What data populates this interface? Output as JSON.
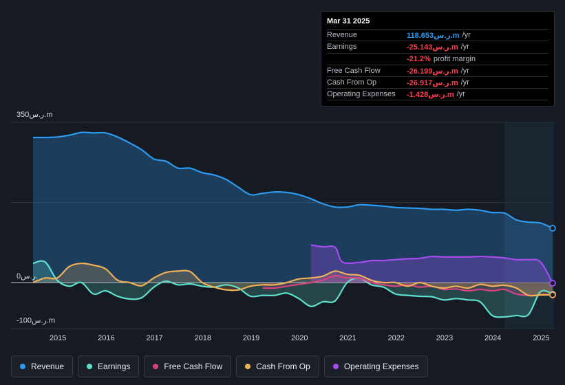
{
  "tooltip": {
    "date": "Mar 31 2025",
    "rows": [
      {
        "label": "Revenue",
        "value": "118.653ر.س.m",
        "unit": "/yr",
        "tone": "pos"
      },
      {
        "label": "Earnings",
        "value": "-25.143ر.س.m",
        "unit": "/yr",
        "tone": "neg"
      },
      {
        "label": "",
        "value": "-21.2%",
        "unit": "profit margin",
        "tone": "neg"
      },
      {
        "label": "Free Cash Flow",
        "value": "-26.199ر.س.m",
        "unit": "/yr",
        "tone": "neg"
      },
      {
        "label": "Cash From Op",
        "value": "-26.917ر.س.m",
        "unit": "/yr",
        "tone": "neg"
      },
      {
        "label": "Operating Expenses",
        "value": "-1.428ر.س.m",
        "unit": "/yr",
        "tone": "neg"
      }
    ]
  },
  "legend": [
    {
      "label": "Revenue",
      "color": "#2e9bf0"
    },
    {
      "label": "Earnings",
      "color": "#5fe0cf"
    },
    {
      "label": "Free Cash Flow",
      "color": "#d8457e"
    },
    {
      "label": "Cash From Op",
      "color": "#f0b05a"
    },
    {
      "label": "Operating Expenses",
      "color": "#a64cf0"
    }
  ],
  "chart_data": {
    "type": "line",
    "title": "",
    "xlabel": "",
    "ylabel": "",
    "ylim": [
      -100,
      350
    ],
    "xlim": [
      2014.5,
      2025.25
    ],
    "y_tick_labels": [
      {
        "value": 350,
        "label": "350ر.س.m"
      },
      {
        "value": 0,
        "label": "0ر.س."
      },
      {
        "value": -100,
        "label": "-100ر.س.m"
      }
    ],
    "x_ticks": [
      "2015",
      "2016",
      "2017",
      "2018",
      "2019",
      "2020",
      "2021",
      "2022",
      "2023",
      "2024",
      "2025"
    ],
    "forecast_start": 2024.25,
    "series": [
      {
        "name": "Revenue",
        "color": "#2e9bf0",
        "x": [
          2014.5,
          2014.75,
          2015.0,
          2015.25,
          2015.5,
          2015.75,
          2016.0,
          2016.25,
          2016.5,
          2016.75,
          2017.0,
          2017.25,
          2017.5,
          2017.75,
          2018.0,
          2018.25,
          2018.5,
          2018.75,
          2019.0,
          2019.25,
          2019.5,
          2019.75,
          2020.0,
          2020.25,
          2020.5,
          2020.75,
          2021.0,
          2021.25,
          2021.5,
          2021.75,
          2022.0,
          2022.25,
          2022.5,
          2022.75,
          2023.0,
          2023.25,
          2023.5,
          2023.75,
          2024.0,
          2024.25,
          2024.5,
          2024.75,
          2025.0,
          2025.25
        ],
        "y": [
          317,
          317,
          318,
          322,
          328,
          327,
          327,
          318,
          305,
          290,
          270,
          265,
          250,
          250,
          240,
          235,
          225,
          208,
          192,
          195,
          198,
          197,
          192,
          183,
          172,
          165,
          165,
          170,
          169,
          167,
          164,
          163,
          162,
          160,
          160,
          158,
          160,
          158,
          153,
          152,
          137,
          132,
          130,
          118.653
        ]
      },
      {
        "name": "Earnings",
        "color": "#5fe0cf",
        "x": [
          2014.5,
          2014.75,
          2015.0,
          2015.25,
          2015.5,
          2015.75,
          2016.0,
          2016.25,
          2016.5,
          2016.75,
          2017.0,
          2017.25,
          2017.5,
          2017.75,
          2018.0,
          2018.25,
          2018.5,
          2018.75,
          2019.0,
          2019.25,
          2019.5,
          2019.75,
          2020.0,
          2020.25,
          2020.5,
          2020.75,
          2021.0,
          2021.25,
          2021.5,
          2021.75,
          2022.0,
          2022.25,
          2022.5,
          2022.75,
          2023.0,
          2023.25,
          2023.5,
          2023.75,
          2024.0,
          2024.25,
          2024.5,
          2024.75,
          2025.0,
          2025.25
        ],
        "y": [
          42,
          45,
          5,
          -8,
          0,
          -25,
          -18,
          -30,
          -36,
          -33,
          -10,
          3,
          -5,
          -3,
          -8,
          -10,
          -5,
          -12,
          -30,
          -28,
          -28,
          -23,
          -35,
          -52,
          -42,
          -40,
          0,
          10,
          -5,
          -10,
          -25,
          -28,
          -30,
          -31,
          -38,
          -35,
          -38,
          -42,
          -72,
          -75,
          -72,
          -70,
          -20,
          -25.143
        ]
      },
      {
        "name": "Free Cash Flow",
        "color": "#d8457e",
        "x": [
          2019.25,
          2019.5,
          2019.75,
          2020.0,
          2020.25,
          2020.5,
          2020.75,
          2021.0,
          2021.25,
          2021.5,
          2021.75,
          2022.0,
          2022.25,
          2022.5,
          2022.75,
          2023.0,
          2023.25,
          2023.5,
          2023.75,
          2024.0,
          2024.25,
          2024.5,
          2024.75,
          2025.0,
          2025.25
        ],
        "y": [
          -12,
          -12,
          -8,
          -4,
          0,
          6,
          15,
          10,
          10,
          0,
          -5,
          -8,
          -5,
          -10,
          -8,
          -15,
          -14,
          -18,
          -15,
          -18,
          -15,
          -25,
          -28,
          -27,
          -26.199
        ]
      },
      {
        "name": "Cash From Op",
        "color": "#f0b05a",
        "x": [
          2014.5,
          2014.75,
          2015.0,
          2015.25,
          2015.5,
          2015.75,
          2016.0,
          2016.25,
          2016.5,
          2016.75,
          2017.0,
          2017.25,
          2017.5,
          2017.75,
          2018.0,
          2018.25,
          2018.5,
          2018.75,
          2019.0,
          2019.25,
          2019.5,
          2019.75,
          2020.0,
          2020.25,
          2020.5,
          2020.75,
          2021.0,
          2021.25,
          2021.5,
          2021.75,
          2022.0,
          2022.25,
          2022.5,
          2022.75,
          2023.0,
          2023.25,
          2023.5,
          2023.75,
          2024.0,
          2024.25,
          2024.5,
          2024.75,
          2025.0,
          2025.25
        ],
        "y": [
          0,
          10,
          10,
          35,
          42,
          38,
          30,
          5,
          0,
          -7,
          10,
          22,
          25,
          24,
          0,
          -10,
          -16,
          -16,
          -8,
          -5,
          -5,
          0,
          8,
          10,
          14,
          25,
          18,
          16,
          5,
          0,
          0,
          -8,
          0,
          -8,
          -12,
          -8,
          -12,
          -4,
          -8,
          -6,
          -12,
          -28,
          -27,
          -26.917
        ]
      },
      {
        "name": "Operating Expenses",
        "color": "#a64cf0",
        "x": [
          2020.25,
          2020.5,
          2020.75,
          2020.9,
          2021.25,
          2021.5,
          2021.75,
          2022.0,
          2022.25,
          2022.5,
          2022.75,
          2023.0,
          2023.25,
          2023.5,
          2023.75,
          2024.0,
          2024.25,
          2024.5,
          2024.75,
          2025.0,
          2025.25
        ],
        "y": [
          82,
          78,
          77,
          45,
          44,
          48,
          48,
          50,
          52,
          53,
          57,
          56,
          56,
          56,
          57,
          56,
          54,
          50,
          50,
          45,
          -1.428
        ]
      }
    ]
  }
}
